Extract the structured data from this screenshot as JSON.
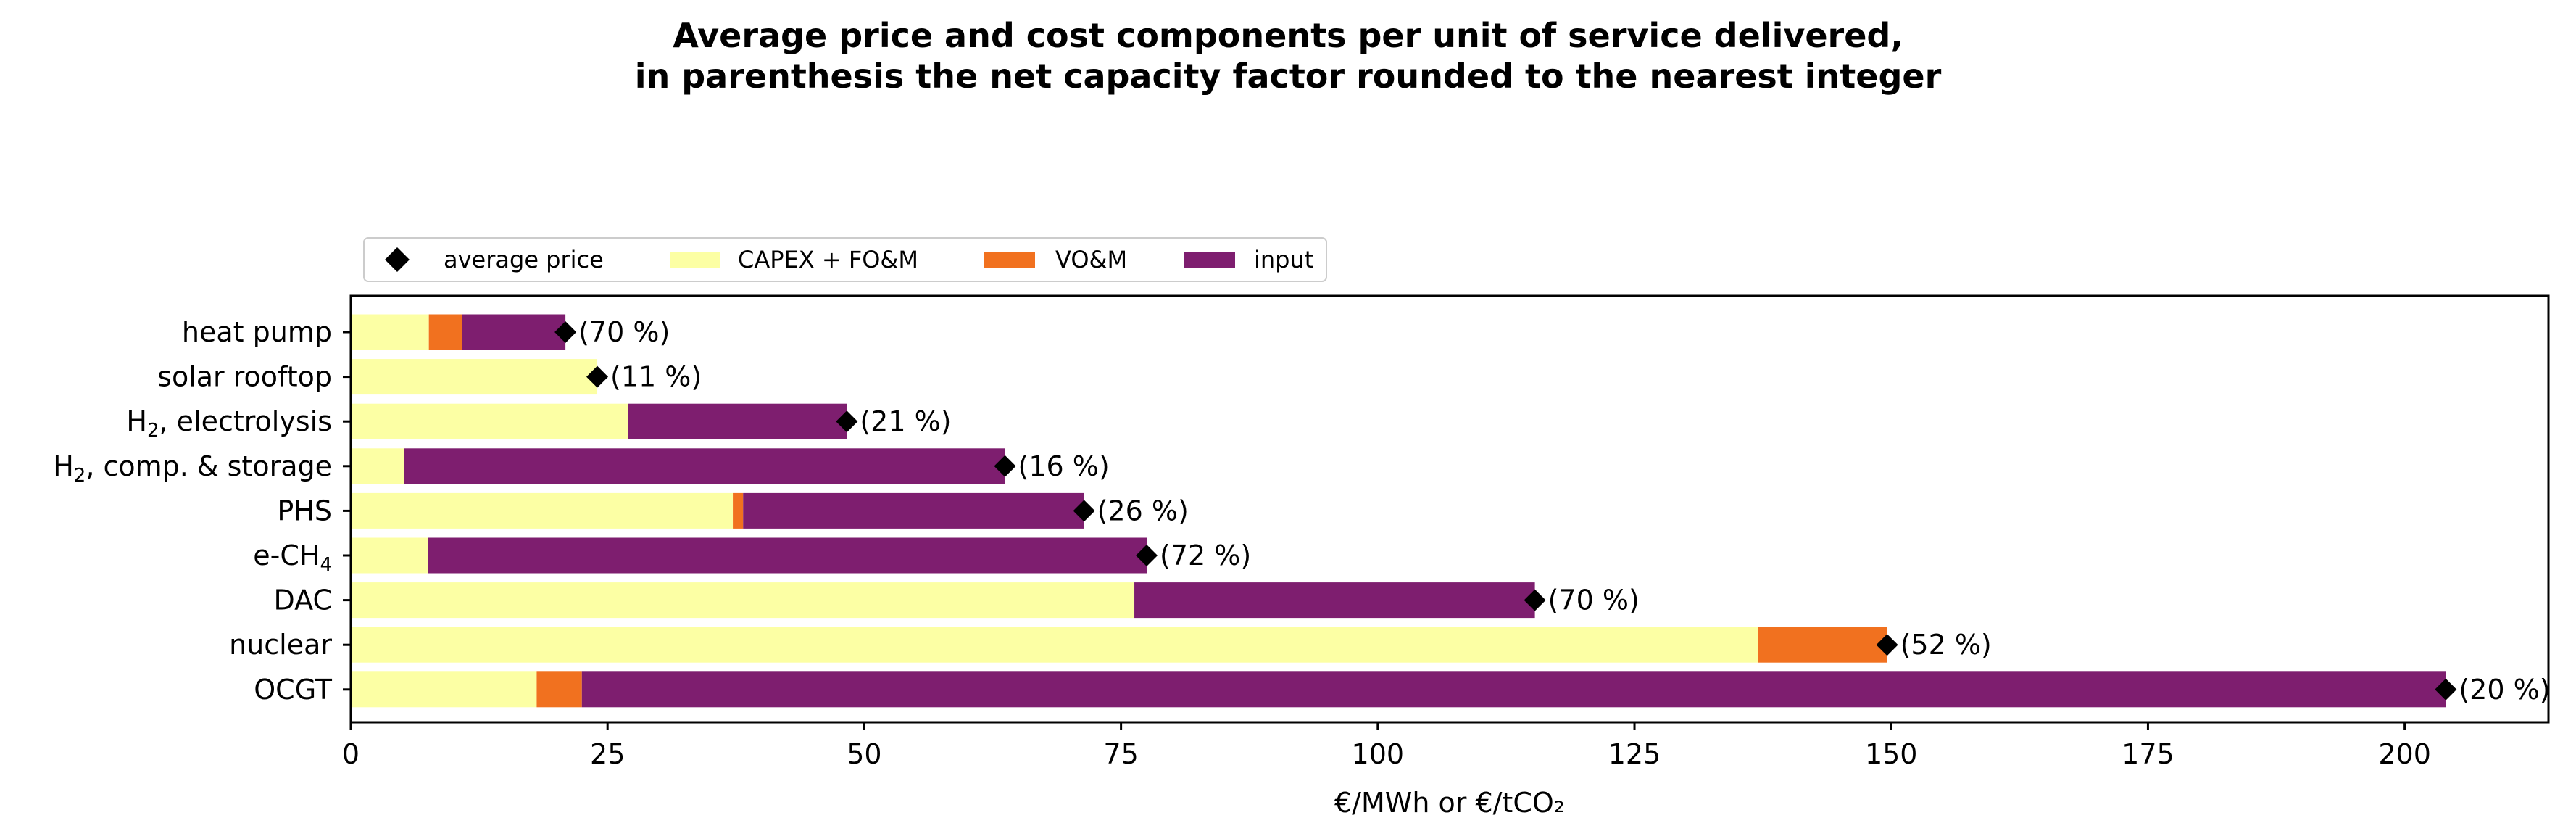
{
  "chart_data": {
    "type": "bar",
    "orientation": "horizontal",
    "stacked": true,
    "title_line1": "Average price and cost components per unit of service delivered,",
    "title_line2": "in parenthesis the net capacity factor rounded to the nearest integer",
    "xlabel": "€/MWh or €/tCO₂",
    "xlim": [
      0,
      214
    ],
    "xticks": [
      0,
      25,
      50,
      75,
      100,
      125,
      150,
      175,
      200
    ],
    "xtick_labels": [
      "0",
      "25",
      "50",
      "75",
      "100",
      "125",
      "150",
      "175",
      "200"
    ],
    "grid": false,
    "legend_position": "top-left, above plot",
    "categories": [
      {
        "pre": "heat pump",
        "sub": "",
        "post": ""
      },
      {
        "pre": "solar rooftop",
        "sub": "",
        "post": ""
      },
      {
        "pre": "H",
        "sub": "2",
        "post": ", electrolysis"
      },
      {
        "pre": "H",
        "sub": "2",
        "post": ", comp. & storage"
      },
      {
        "pre": "PHS",
        "sub": "",
        "post": ""
      },
      {
        "pre": "e-CH",
        "sub": "4",
        "post": ""
      },
      {
        "pre": "DAC",
        "sub": "",
        "post": ""
      },
      {
        "pre": "nuclear",
        "sub": "",
        "post": ""
      },
      {
        "pre": "OCGT",
        "sub": "",
        "post": ""
      }
    ],
    "series": [
      {
        "name": "CAPEX + FO&M",
        "color": "#fcffa4",
        "values": [
          7.6,
          24.0,
          27.0,
          5.2,
          37.2,
          7.5,
          76.3,
          137.0,
          18.1
        ]
      },
      {
        "name": "VO&M",
        "color": "#f1711f",
        "values": [
          3.2,
          0,
          0,
          0,
          1.0,
          0,
          0,
          12.6,
          4.4
        ]
      },
      {
        "name": "input",
        "color": "#7e1e6f",
        "values": [
          10.1,
          0,
          21.3,
          58.5,
          33.2,
          70.0,
          39.0,
          0,
          181.5
        ]
      }
    ],
    "average_price": {
      "name": "average price",
      "color": "#000000",
      "values": [
        20.9,
        24.0,
        48.3,
        63.7,
        71.4,
        77.5,
        115.3,
        149.6,
        204.0
      ]
    },
    "capacity_factor_labels": [
      "(70 %)",
      "(11 %)",
      "(21 %)",
      "(16 %)",
      "(26 %)",
      "(72 %)",
      "(70 %)",
      "(52 %)",
      "(20 %)"
    ],
    "legend": [
      "average price",
      "CAPEX + FO&M",
      "VO&M",
      "input"
    ]
  }
}
